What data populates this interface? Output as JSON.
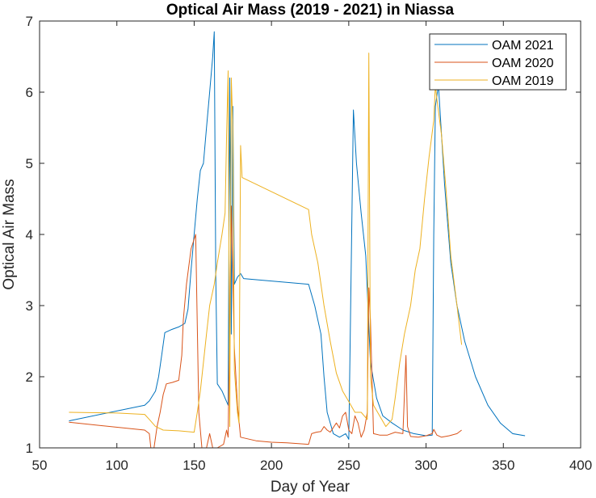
{
  "chart_data": {
    "type": "line",
    "title": "Optical Air Mass (2019 - 2021) in Niassa",
    "xlabel": "Day of Year",
    "ylabel": "Optical Air Mass",
    "xlim": [
      50,
      400
    ],
    "ylim": [
      1,
      7
    ],
    "xticks": [
      "50",
      "100",
      "150",
      "200",
      "250",
      "300",
      "350",
      "400"
    ],
    "yticks": [
      "1",
      "2",
      "3",
      "4",
      "5",
      "6",
      "7"
    ],
    "grid": false,
    "legend_position": "top-right",
    "series": [
      {
        "name": "OAM 2021",
        "color": "#0072BD",
        "points": [
          [
            69,
            1.38
          ],
          [
            118,
            1.6
          ],
          [
            121,
            1.66
          ],
          [
            125,
            1.8
          ],
          [
            127,
            2.0
          ],
          [
            129,
            2.3
          ],
          [
            131,
            2.62
          ],
          [
            135,
            2.66
          ],
          [
            140,
            2.7
          ],
          [
            144,
            2.75
          ],
          [
            146,
            2.95
          ],
          [
            148,
            3.5
          ],
          [
            150,
            4.0
          ],
          [
            152,
            4.5
          ],
          [
            154,
            4.9
          ],
          [
            156,
            5.0
          ],
          [
            158,
            5.5
          ],
          [
            160,
            6.0
          ],
          [
            162,
            6.5
          ],
          [
            163,
            6.85
          ],
          [
            164,
            3.4
          ],
          [
            165,
            1.9
          ],
          [
            168,
            1.8
          ],
          [
            170,
            1.7
          ],
          [
            172,
            1.6
          ],
          [
            173,
            6.2
          ],
          [
            174,
            2.6
          ],
          [
            175,
            5.8
          ],
          [
            176,
            3.3
          ],
          [
            178,
            3.4
          ],
          [
            180,
            3.45
          ],
          [
            182,
            3.38
          ],
          [
            224,
            3.3
          ],
          [
            228,
            3.0
          ],
          [
            232,
            2.6
          ],
          [
            234,
            2.0
          ],
          [
            236,
            1.5
          ],
          [
            240,
            1.2
          ],
          [
            244,
            1.15
          ],
          [
            248,
            1.2
          ],
          [
            250,
            1.12
          ],
          [
            253,
            5.75
          ],
          [
            255,
            5.0
          ],
          [
            258,
            4.3
          ],
          [
            261,
            3.7
          ],
          [
            264,
            2.2
          ],
          [
            268,
            1.7
          ],
          [
            272,
            1.45
          ],
          [
            278,
            1.35
          ],
          [
            285,
            1.25
          ],
          [
            292,
            1.2
          ],
          [
            300,
            1.17
          ],
          [
            304,
            1.18
          ],
          [
            305,
            4.0
          ],
          [
            306,
            5.8
          ],
          [
            308,
            6.1
          ],
          [
            310,
            5.4
          ],
          [
            312,
            4.7
          ],
          [
            316,
            3.6
          ],
          [
            320,
            3.0
          ],
          [
            325,
            2.5
          ],
          [
            332,
            2.0
          ],
          [
            340,
            1.6
          ],
          [
            348,
            1.35
          ],
          [
            356,
            1.2
          ],
          [
            364,
            1.17
          ]
        ]
      },
      {
        "name": "OAM 2020",
        "color": "#D95319",
        "points": [
          [
            69,
            1.36
          ],
          [
            118,
            1.25
          ],
          [
            121,
            1.2
          ],
          [
            122,
            1.0
          ],
          [
            124,
            1.0
          ],
          [
            126,
            1.3
          ],
          [
            128,
            1.5
          ],
          [
            130,
            1.75
          ],
          [
            132,
            1.9
          ],
          [
            136,
            1.92
          ],
          [
            140,
            1.95
          ],
          [
            142,
            2.3
          ],
          [
            143,
            2.8
          ],
          [
            145,
            3.3
          ],
          [
            148,
            3.8
          ],
          [
            151,
            4.0
          ],
          [
            153,
            1.5
          ],
          [
            155,
            1.0
          ],
          [
            158,
            1.0
          ],
          [
            160,
            1.2
          ],
          [
            162,
            1.0
          ],
          [
            165,
            1.0
          ],
          [
            169,
            1.05
          ],
          [
            171,
            1.25
          ],
          [
            172,
            1.15
          ],
          [
            174,
            4.4
          ],
          [
            176,
            2.4
          ],
          [
            178,
            1.6
          ],
          [
            180,
            1.15
          ],
          [
            190,
            1.1
          ],
          [
            200,
            1.08
          ],
          [
            210,
            1.07
          ],
          [
            224,
            1.05
          ],
          [
            226,
            1.2
          ],
          [
            229,
            1.22
          ],
          [
            232,
            1.23
          ],
          [
            234,
            1.3
          ],
          [
            236,
            1.25
          ],
          [
            238,
            1.22
          ],
          [
            242,
            1.35
          ],
          [
            244,
            1.28
          ],
          [
            246,
            1.45
          ],
          [
            248,
            1.5
          ],
          [
            250,
            1.25
          ],
          [
            252,
            1.2
          ],
          [
            254,
            1.45
          ],
          [
            256,
            1.35
          ],
          [
            258,
            1.15
          ],
          [
            260,
            1.25
          ],
          [
            262,
            1.5
          ],
          [
            263,
            3.25
          ],
          [
            264,
            2.8
          ],
          [
            266,
            1.2
          ],
          [
            270,
            1.18
          ],
          [
            275,
            1.18
          ],
          [
            280,
            1.22
          ],
          [
            285,
            1.2
          ],
          [
            287,
            2.3
          ],
          [
            288,
            1.3
          ],
          [
            290,
            1.16
          ],
          [
            295,
            1.15
          ],
          [
            300,
            1.17
          ],
          [
            304,
            1.2
          ],
          [
            305,
            1.26
          ],
          [
            307,
            1.18
          ],
          [
            310,
            1.15
          ],
          [
            315,
            1.17
          ],
          [
            320,
            1.2
          ],
          [
            323,
            1.25
          ]
        ]
      },
      {
        "name": "OAM 2019",
        "color": "#EDB120",
        "points": [
          [
            69,
            1.5
          ],
          [
            100,
            1.49
          ],
          [
            118,
            1.47
          ],
          [
            121,
            1.4
          ],
          [
            125,
            1.3
          ],
          [
            130,
            1.25
          ],
          [
            140,
            1.24
          ],
          [
            150,
            1.22
          ],
          [
            152,
            1.5
          ],
          [
            154,
            1.8
          ],
          [
            156,
            2.2
          ],
          [
            158,
            2.6
          ],
          [
            160,
            3.0
          ],
          [
            163,
            3.3
          ],
          [
            165,
            3.6
          ],
          [
            168,
            4.0
          ],
          [
            170,
            4.3
          ],
          [
            171,
            5.4
          ],
          [
            172,
            6.3
          ],
          [
            173,
            1.3
          ],
          [
            174,
            6.2
          ],
          [
            175,
            5.5
          ],
          [
            176,
            2.1
          ],
          [
            178,
            1.5
          ],
          [
            179,
            1.35
          ],
          [
            180,
            5.25
          ],
          [
            181,
            4.8
          ],
          [
            224,
            4.35
          ],
          [
            226,
            4.0
          ],
          [
            230,
            3.6
          ],
          [
            234,
            3.0
          ],
          [
            238,
            2.5
          ],
          [
            242,
            2.05
          ],
          [
            246,
            1.8
          ],
          [
            250,
            1.65
          ],
          [
            254,
            1.5
          ],
          [
            258,
            1.5
          ],
          [
            262,
            1.4
          ],
          [
            263,
            6.55
          ],
          [
            264,
            2.0
          ],
          [
            266,
            1.6
          ],
          [
            270,
            1.45
          ],
          [
            274,
            1.3
          ],
          [
            278,
            1.4
          ],
          [
            280,
            1.7
          ],
          [
            283,
            2.2
          ],
          [
            286,
            2.6
          ],
          [
            290,
            3.0
          ],
          [
            293,
            3.5
          ],
          [
            296,
            3.8
          ],
          [
            299,
            4.5
          ],
          [
            302,
            5.1
          ],
          [
            305,
            5.6
          ],
          [
            306,
            6.1
          ],
          [
            307,
            5.9
          ],
          [
            310,
            5.4
          ],
          [
            313,
            4.6
          ],
          [
            316,
            3.7
          ],
          [
            320,
            3.0
          ],
          [
            323,
            2.45
          ]
        ]
      }
    ]
  }
}
